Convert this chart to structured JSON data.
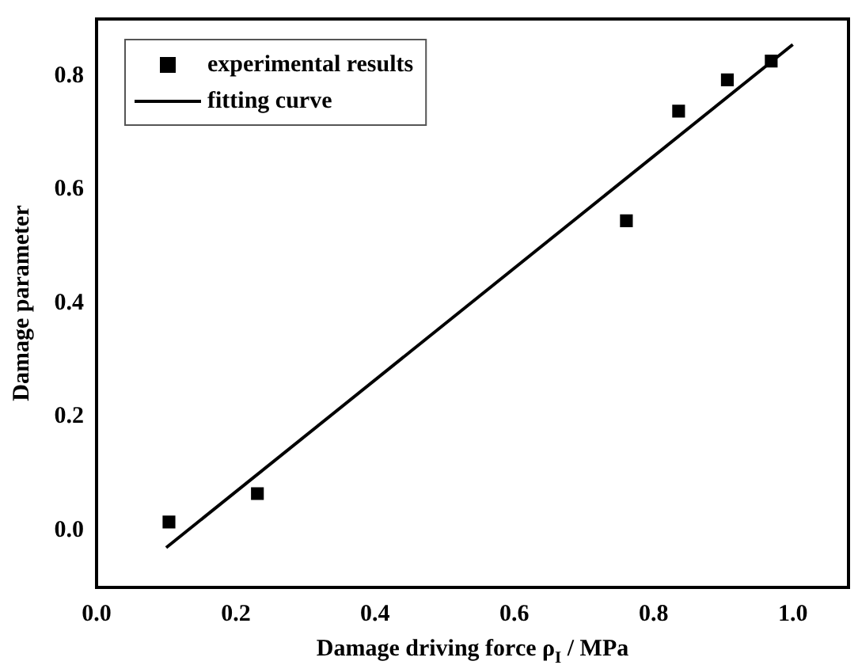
{
  "chart_data": {
    "type": "scatter",
    "xlabel": "Damage driving force ρ$_{I}$ / MPa",
    "ylabel": "Damage parameter",
    "xlim": [
      0,
      1.08
    ],
    "ylim": [
      -0.1,
      0.9
    ],
    "xticks": [
      {
        "value": 0,
        "label": "0.0"
      },
      {
        "value": 0.2,
        "label": "0.2"
      },
      {
        "value": 0.4,
        "label": "0.4"
      },
      {
        "value": 0.6,
        "label": "0.6"
      },
      {
        "value": 0.8,
        "label": "0.8"
      },
      {
        "value": 1,
        "label": "1.0"
      }
    ],
    "yticks": [
      {
        "value": 0,
        "label": "0.0"
      },
      {
        "value": 0.2,
        "label": "0.2"
      },
      {
        "value": 0.4,
        "label": "0.4"
      },
      {
        "value": 0.6,
        "label": "0.6"
      },
      {
        "value": 0.8,
        "label": "0.8"
      }
    ],
    "grid": false,
    "legend": "top left",
    "series": [
      {
        "name": "experimental results",
        "marker": "square",
        "color": "#000000",
        "x": [
          0.104,
          0.231,
          0.761,
          0.836,
          0.906,
          0.969
        ],
        "values": [
          0.015,
          0.065,
          0.545,
          0.738,
          0.793,
          0.826
        ]
      },
      {
        "name": "fitting curve",
        "type": "line",
        "marker": "none",
        "line_style": "solid",
        "color": "#000000",
        "x": [
          0.1,
          1.0
        ],
        "values": [
          -0.03,
          0.855
        ]
      }
    ]
  }
}
